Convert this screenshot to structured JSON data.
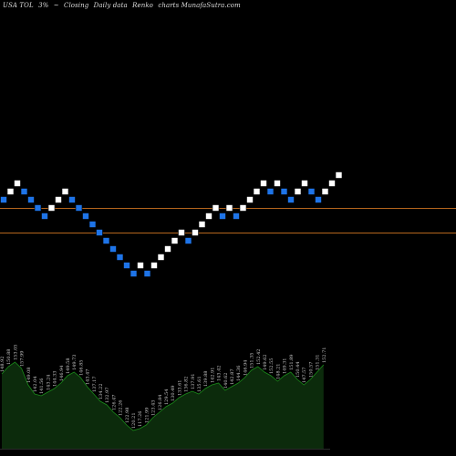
{
  "header": {
    "symbol": "USA TOL",
    "pct": "3%",
    "tilde": "~",
    "label_closing": "Closing",
    "label_daily": "Daily data",
    "label_renko": "Renko",
    "label_charts": "charts MunafaSutra.com"
  },
  "chart_data": {
    "type": "renko",
    "brick_size": 3,
    "colors": {
      "up": "#ffffff",
      "down": "#1e74e8",
      "hline": "#b5651d",
      "volume_fill": "#0c2b0c",
      "volume_line": "#1a8a1a",
      "label": "#c8c8c8"
    },
    "horizontal_lines": [
      143,
      134
    ],
    "bricks": [
      {
        "value": 146,
        "dir": "down"
      },
      {
        "value": 149,
        "dir": "up"
      },
      {
        "value": 152,
        "dir": "up"
      },
      {
        "value": 149,
        "dir": "down"
      },
      {
        "value": 146,
        "dir": "down"
      },
      {
        "value": 143,
        "dir": "down"
      },
      {
        "value": 140,
        "dir": "down"
      },
      {
        "value": 143,
        "dir": "up"
      },
      {
        "value": 146,
        "dir": "up"
      },
      {
        "value": 149,
        "dir": "up"
      },
      {
        "value": 146,
        "dir": "down"
      },
      {
        "value": 143,
        "dir": "down"
      },
      {
        "value": 140,
        "dir": "down"
      },
      {
        "value": 137,
        "dir": "down"
      },
      {
        "value": 134,
        "dir": "down"
      },
      {
        "value": 131,
        "dir": "down"
      },
      {
        "value": 128,
        "dir": "down"
      },
      {
        "value": 125,
        "dir": "down"
      },
      {
        "value": 122,
        "dir": "down"
      },
      {
        "value": 119,
        "dir": "down"
      },
      {
        "value": 122,
        "dir": "up"
      },
      {
        "value": 119,
        "dir": "down"
      },
      {
        "value": 122,
        "dir": "up"
      },
      {
        "value": 125,
        "dir": "up"
      },
      {
        "value": 128,
        "dir": "up"
      },
      {
        "value": 131,
        "dir": "up"
      },
      {
        "value": 134,
        "dir": "up"
      },
      {
        "value": 131,
        "dir": "down"
      },
      {
        "value": 134,
        "dir": "up"
      },
      {
        "value": 137,
        "dir": "up"
      },
      {
        "value": 140,
        "dir": "up"
      },
      {
        "value": 143,
        "dir": "up"
      },
      {
        "value": 140,
        "dir": "down"
      },
      {
        "value": 143,
        "dir": "up"
      },
      {
        "value": 140,
        "dir": "down"
      },
      {
        "value": 143,
        "dir": "up"
      },
      {
        "value": 146,
        "dir": "up"
      },
      {
        "value": 149,
        "dir": "up"
      },
      {
        "value": 152,
        "dir": "up"
      },
      {
        "value": 149,
        "dir": "down"
      },
      {
        "value": 152,
        "dir": "up"
      },
      {
        "value": 149,
        "dir": "down"
      },
      {
        "value": 146,
        "dir": "down"
      },
      {
        "value": 149,
        "dir": "up"
      },
      {
        "value": 152,
        "dir": "up"
      },
      {
        "value": 149,
        "dir": "down"
      },
      {
        "value": 146,
        "dir": "down"
      },
      {
        "value": 149,
        "dir": "up"
      },
      {
        "value": 152,
        "dir": "up"
      },
      {
        "value": 155,
        "dir": "up"
      }
    ],
    "volume_profile": [
      82,
      90,
      95,
      88,
      70,
      60,
      58,
      62,
      66,
      72,
      80,
      84,
      78,
      68,
      60,
      52,
      48,
      40,
      34,
      26,
      20,
      22,
      26,
      34,
      40,
      46,
      50,
      56,
      60,
      63,
      60,
      66,
      70,
      72,
      64,
      68,
      72,
      78,
      86,
      90,
      84,
      80,
      74,
      80,
      84,
      76,
      70,
      76,
      84,
      92
    ],
    "volume_labels": [
      "148.92",
      "150.88",
      "153.05",
      "157.99",
      "149.08",
      "142.04",
      "141.56",
      "143.24",
      "144.33",
      "146.94",
      "149.58",
      "149.73",
      "146.85",
      "143.47",
      "137.17",
      "134.22",
      "132.97",
      "126.47",
      "122.26",
      "122.98",
      "120.21",
      "117.26",
      "121.99",
      "123.43",
      "126.84",
      "129.54",
      "130.49",
      "133.61",
      "136.82",
      "137.91",
      "135.61",
      "139.88",
      "142.91",
      "143.42",
      "140.62",
      "142.87",
      "144.36",
      "146.94",
      "151.35",
      "152.42",
      "149.62",
      "152.55",
      "148.21",
      "149.31",
      "151.89",
      "150.44",
      "147.57",
      "150.57",
      "151.31",
      "152.71"
    ]
  }
}
